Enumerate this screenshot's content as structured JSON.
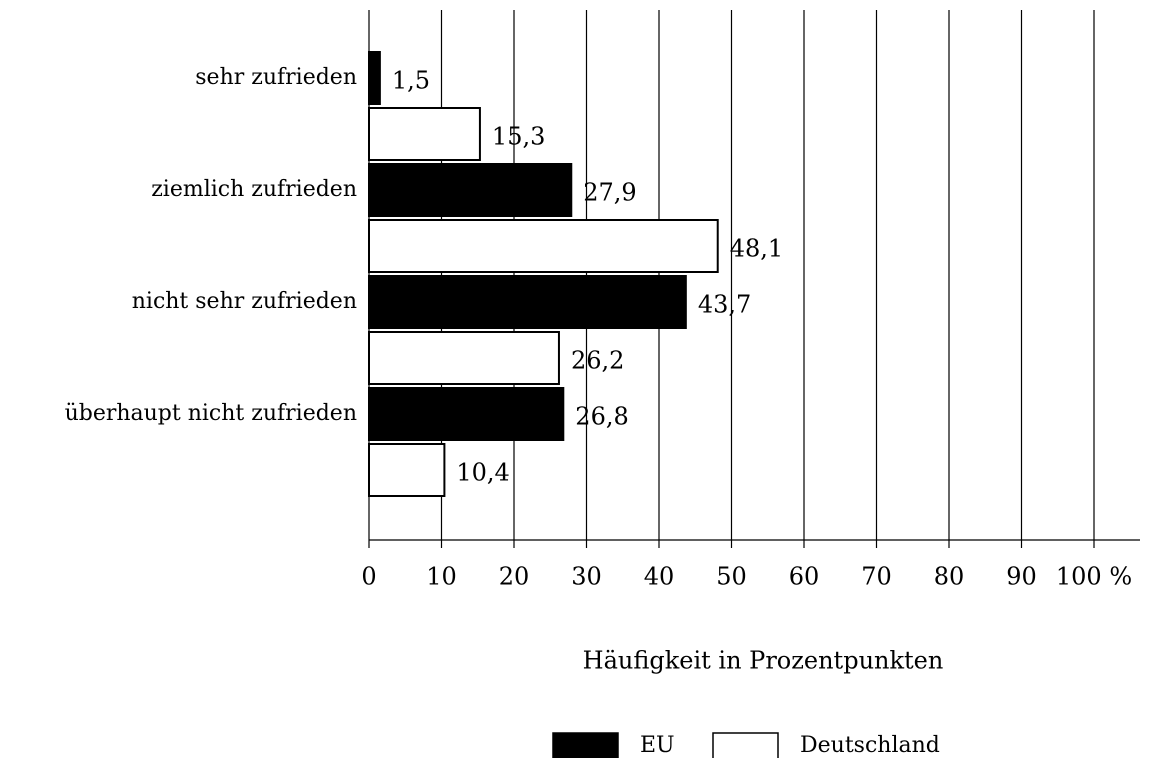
{
  "chart_data": {
    "type": "bar",
    "orientation": "horizontal",
    "categories": [
      "sehr zufrieden",
      "ziemlich zufrieden",
      "nicht sehr zufrieden",
      "überhaupt nicht zufrieden"
    ],
    "series": [
      {
        "name": "EU",
        "color": "#000000",
        "values": [
          1.5,
          27.9,
          43.7,
          26.8
        ],
        "value_labels": [
          "1,5",
          "27,9",
          "43,7",
          "26,8"
        ]
      },
      {
        "name": "Deutschland",
        "color": "#ffffff",
        "values": [
          15.3,
          48.1,
          26.2,
          10.4
        ],
        "value_labels": [
          "15,3",
          "48,1",
          "26,2",
          "10,4"
        ]
      }
    ],
    "x_label": "Häufigkeit in Prozentpunkten",
    "xlim": [
      0,
      100
    ],
    "xticks": [
      0,
      10,
      20,
      30,
      40,
      50,
      60,
      70,
      80,
      90,
      {
        "value": 100,
        "label": "100 %"
      }
    ],
    "grid": true,
    "legend": "bottom"
  }
}
